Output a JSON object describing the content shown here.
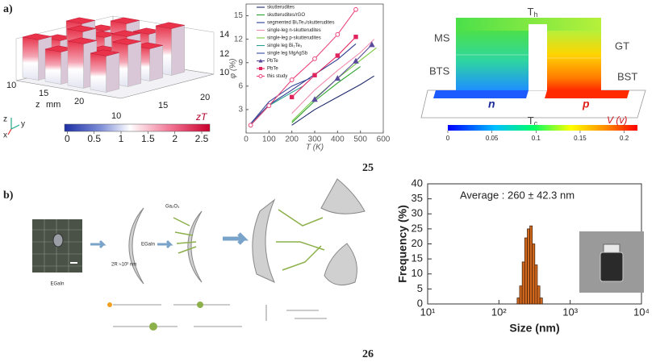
{
  "figure_labels": {
    "a": "a)",
    "b": "b)"
  },
  "figure_numbers": [
    "25",
    "26"
  ],
  "panel_a_left": {
    "z_ticks": [
      "14",
      "12",
      "10"
    ],
    "x_ticks": [
      "10",
      "15",
      "20"
    ],
    "y_ticks": [
      "20",
      "15",
      "10"
    ],
    "axis_label": "z",
    "unit_label": "mm",
    "axis_icon": {
      "z": "z",
      "y": "y",
      "x": "x"
    },
    "colorbar": {
      "label": "zT",
      "lim": [
        -0.05,
        2.65
      ],
      "ticks": [
        0,
        0.5,
        1,
        1.5,
        2,
        2.5
      ]
    }
  },
  "panel_a_right": {
    "hot_side": {
      "symbol": "T",
      "subscript": "h"
    },
    "cold_side": {
      "symbol": "T",
      "subscript": "c"
    },
    "legs": {
      "left_top": "MS",
      "left_bottom": "BTS",
      "right_top": "GT",
      "right_bottom": "BST",
      "n": "n",
      "p": "p"
    },
    "colorbar": {
      "label": "V (v)",
      "lim": [
        0,
        0.215
      ],
      "ticks": [
        0,
        0.05,
        0.1,
        0.15,
        0.2
      ]
    }
  },
  "panel_b_schematic": {
    "shell": "Ga₂O₃",
    "core": "EGaIn",
    "radius": "2R ≈10² nm",
    "photo_caption": "EGaIn"
  },
  "chart_data": [
    {
      "type": "line",
      "x_label": "T (K)",
      "y_label": "φ (%)",
      "xlim": [
        0,
        600
      ],
      "ylim": [
        0,
        16.5
      ],
      "xticks": [
        0,
        100,
        200,
        300,
        400,
        500,
        600
      ],
      "yticks": [
        3,
        6,
        9,
        12,
        15
      ],
      "series": [
        {
          "name": "skutterudites",
          "color": "#1f2a6b",
          "x": [
            200,
            300,
            400,
            500,
            560
          ],
          "values": [
            1,
            3,
            4.6,
            6.2,
            7.3
          ]
        },
        {
          "name": "skutterudites/rGO",
          "color": "#2ca02c",
          "x": [
            200,
            300,
            400,
            500
          ],
          "values": [
            1.3,
            4.1,
            6.4,
            8.5
          ]
        },
        {
          "name": "segmented Bi₂Te₃/skutterudites",
          "color": "#2b3990",
          "x": [
            20,
            100,
            200,
            300,
            400,
            480
          ],
          "values": [
            1.2,
            3.6,
            5.5,
            7.5,
            9.4,
            11.4
          ]
        },
        {
          "name": "single-leg n-skutterudites",
          "color": "#f08cb0",
          "x": [
            200,
            300,
            400,
            500,
            560
          ],
          "values": [
            2.5,
            5.5,
            8,
            10.3,
            12
          ]
        },
        {
          "name": "single-leg p-skutterudites",
          "color": "#7ac943",
          "x": [
            200,
            300,
            400,
            500,
            570
          ],
          "values": [
            1.5,
            4.4,
            7,
            9.3,
            10.9
          ]
        },
        {
          "name": "single leg Bi₂Te₃",
          "color": "#25a18e",
          "x": [
            20,
            100,
            200,
            250
          ],
          "values": [
            1,
            3.5,
            5.2,
            6
          ]
        },
        {
          "name": "single leg MgAgSb",
          "color": "#3a4a9a",
          "x": [
            20,
            100,
            200,
            280
          ],
          "values": [
            1.2,
            4,
            6,
            7
          ]
        },
        {
          "name": "PbTe",
          "color": "#5b4a9a",
          "marker": "triangle",
          "x": [
            300,
            400,
            480,
            550
          ],
          "values": [
            4.3,
            7,
            9.2,
            11.3
          ]
        },
        {
          "name": "PbTe",
          "color": "#e0245e",
          "marker": "square",
          "x": [
            200,
            300,
            400,
            480
          ],
          "values": [
            4.6,
            7.4,
            9.9,
            12.3
          ]
        },
        {
          "name": "this study",
          "color": "#e8457a",
          "marker": "circle",
          "x": [
            20,
            100,
            200,
            300,
            400,
            480
          ],
          "values": [
            1,
            3.5,
            6.8,
            9.5,
            12.6,
            15.8
          ]
        }
      ]
    },
    {
      "type": "histogram",
      "x_label": "Size (nm)",
      "y_label": "Frequency (%)",
      "annotation": "Average : 260 ± 42.3 nm",
      "x_scale": "log",
      "xlim": [
        10,
        10000
      ],
      "xticks": [
        {
          "value": 10,
          "label": "10¹"
        },
        {
          "value": 100,
          "label": "10²"
        },
        {
          "value": 1000,
          "label": "10³"
        },
        {
          "value": 10000,
          "label": "10⁴"
        }
      ],
      "ylim": [
        0,
        40
      ],
      "yticks": [
        0,
        5,
        10,
        15,
        20,
        25,
        30,
        35,
        40
      ],
      "bins": [
        180,
        195,
        212,
        230,
        250,
        271,
        294,
        319,
        346,
        376,
        408
      ],
      "values": [
        2,
        6,
        14,
        22,
        25,
        26,
        20,
        13,
        6,
        2
      ],
      "color": "#d2691e"
    }
  ]
}
